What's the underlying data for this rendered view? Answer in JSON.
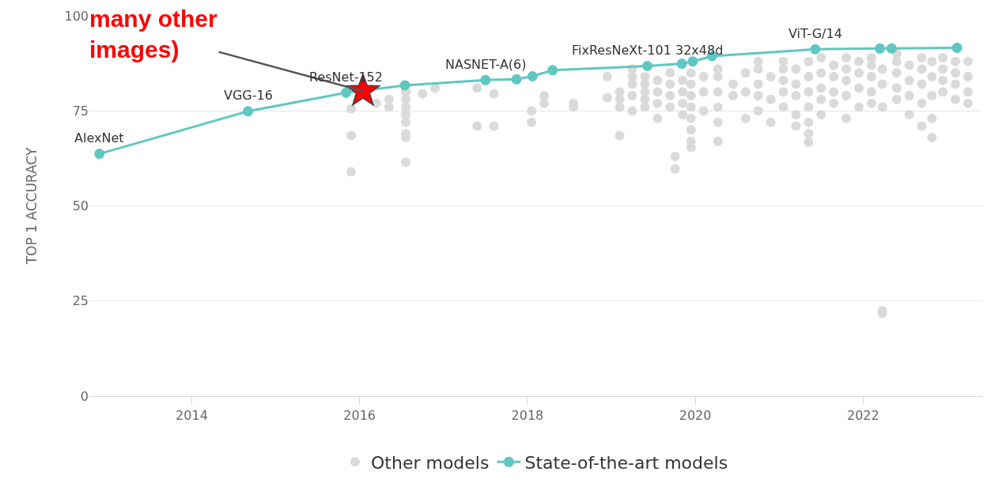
{
  "chart_data": {
    "type": "scatter",
    "ylabel": "TOP 1 ACCURACY",
    "xlim": [
      2012.78,
      2023.42
    ],
    "xticks": [
      2014,
      2016,
      2018,
      2020,
      2022
    ],
    "ylim": [
      0,
      100
    ],
    "yticks": [
      0,
      25,
      50,
      75,
      100
    ],
    "grid": "y",
    "legend": "bottom",
    "marker": "circle",
    "series": [
      {
        "name": "Other models",
        "color": "#dadada",
        "x": [
          2015.9,
          2015.9,
          2015.9,
          2016.2,
          2016.35,
          2016.35,
          2016.55,
          2016.55,
          2016.55,
          2016.55,
          2016.55,
          2016.55,
          2016.55,
          2016.55,
          2016.75,
          2016.9,
          2017.4,
          2017.4,
          2017.6,
          2017.6,
          2018.05,
          2018.05,
          2018.2,
          2018.2,
          2018.55,
          2018.55,
          2018.95,
          2018.95,
          2019.1,
          2019.1,
          2019.1,
          2019.1,
          2019.25,
          2019.25,
          2019.25,
          2019.25,
          2019.25,
          2019.4,
          2019.4,
          2019.4,
          2019.4,
          2019.4,
          2019.55,
          2019.55,
          2019.55,
          2019.55,
          2019.7,
          2019.7,
          2019.7,
          2019.7,
          2019.76,
          2019.76,
          2019.85,
          2019.85,
          2019.85,
          2019.85,
          2019.95,
          2019.95,
          2019.95,
          2019.95,
          2019.95,
          2019.95,
          2019.95,
          2019.95,
          2020.1,
          2020.1,
          2020.1,
          2020.27,
          2020.27,
          2020.27,
          2020.27,
          2020.27,
          2020.27,
          2020.45,
          2020.45,
          2020.6,
          2020.6,
          2020.6,
          2020.75,
          2020.75,
          2020.75,
          2020.75,
          2020.75,
          2020.9,
          2020.9,
          2020.9,
          2021.05,
          2021.05,
          2021.05,
          2021.05,
          2021.05,
          2021.2,
          2021.2,
          2021.2,
          2021.2,
          2021.2,
          2021.35,
          2021.35,
          2021.35,
          2021.35,
          2021.35,
          2021.35,
          2021.35,
          2021.5,
          2021.5,
          2021.5,
          2021.5,
          2021.5,
          2021.65,
          2021.65,
          2021.65,
          2021.65,
          2021.8,
          2021.8,
          2021.8,
          2021.8,
          2021.8,
          2021.95,
          2021.95,
          2021.95,
          2021.95,
          2022.1,
          2022.1,
          2022.1,
          2022.1,
          2022.1,
          2022.23,
          2022.23,
          2022.23,
          2022.23,
          2022.23,
          2022.4,
          2022.4,
          2022.4,
          2022.4,
          2022.4,
          2022.55,
          2022.55,
          2022.55,
          2022.55,
          2022.7,
          2022.7,
          2022.7,
          2022.7,
          2022.7,
          2022.82,
          2022.82,
          2022.82,
          2022.82,
          2022.82,
          2022.95,
          2022.95,
          2022.95,
          2022.95,
          2023.1,
          2023.1,
          2023.1,
          2023.1,
          2023.25,
          2023.25,
          2023.25,
          2023.25
        ],
        "values": [
          59,
          68.5,
          75.5,
          77,
          76,
          78,
          61.5,
          68,
          69,
          72,
          74,
          76,
          78,
          80,
          79.5,
          81,
          71,
          81,
          71,
          79.5,
          72,
          75,
          77,
          79,
          76,
          77,
          78.5,
          84,
          68.5,
          76,
          78,
          80,
          75,
          79,
          82,
          84,
          86,
          76,
          78,
          80,
          82,
          84,
          73,
          77,
          80,
          83,
          76,
          79,
          82,
          85,
          63,
          59.7,
          74,
          77,
          80,
          83,
          65.4,
          67,
          70,
          73,
          76,
          79,
          82,
          85,
          75,
          80,
          84,
          67,
          72,
          76,
          80,
          84,
          86,
          79,
          82,
          73,
          80,
          85,
          75,
          79,
          82,
          86,
          88,
          72,
          78,
          84,
          76,
          80,
          83,
          86,
          88,
          71,
          74,
          79,
          82,
          86,
          66.8,
          69,
          72,
          76,
          80,
          84,
          88,
          74,
          78,
          81,
          85,
          89,
          77,
          80,
          84,
          87,
          73,
          79,
          83,
          86,
          89,
          76,
          81,
          85,
          88,
          77,
          80,
          84,
          87,
          89,
          21.8,
          22.4,
          76,
          82,
          86,
          78,
          81,
          85,
          88,
          90,
          74,
          79,
          83,
          87,
          71,
          77,
          82,
          86,
          89,
          68,
          73,
          79,
          84,
          88,
          80,
          83,
          86,
          89,
          78,
          82,
          85,
          88,
          77,
          80,
          84,
          88
        ]
      },
      {
        "name": "State-of-the-art models",
        "type": "line",
        "color": "#5fc7c2",
        "x": [
          2012.9,
          2014.67,
          2015.84,
          2016.54,
          2017.5,
          2017.87,
          2018.06,
          2018.3,
          2019.43,
          2019.84,
          2019.97,
          2020.2,
          2021.43,
          2022.2,
          2022.34,
          2023.12
        ],
        "values": [
          63.7,
          74.9,
          79.8,
          81.7,
          83.1,
          83.3,
          84.1,
          85.7,
          86.8,
          87.4,
          88.0,
          89.4,
          91.2,
          91.4,
          91.4,
          91.6
        ]
      }
    ],
    "annotations": [
      {
        "text": "many other\nimages)",
        "x": 2016.04,
        "y": 80.2
      },
      {
        "text": "AlexNet",
        "x": 2012.9,
        "y": 63.7
      },
      {
        "text": "VGG-16",
        "x": 2014.67,
        "y": 74.9
      },
      {
        "text": "ResNet-152",
        "x": 2015.84,
        "y": 79.8
      },
      {
        "text": "NASNET-A(6)",
        "x": 2017.5,
        "y": 83.1
      },
      {
        "text": "FixResNeXt-101 32x48d",
        "x": 2019.43,
        "y": 86.8
      },
      {
        "text": "ViT-G/14",
        "x": 2021.43,
        "y": 91.2
      }
    ]
  }
}
